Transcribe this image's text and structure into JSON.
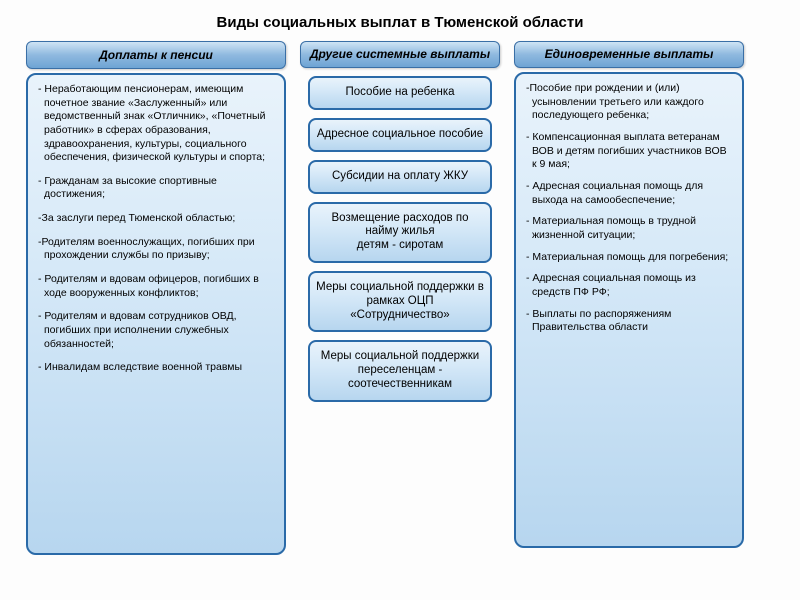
{
  "page": {
    "title": "Виды социальных выплат в Тюменской области",
    "background_color": "#fdfdfd",
    "title_fontsize": 15
  },
  "styling": {
    "header_gradient": [
      "#cfe4f5",
      "#8fb9df",
      "#6ea4d4"
    ],
    "panel_gradient": [
      "#e9f3fb",
      "#d6e9f8",
      "#b7d6ef"
    ],
    "border_color": "#2a6aa8",
    "font_family": "Arial",
    "body_fontsize": 10.5,
    "midbox_fontsize": 11.5,
    "header_fontsize": 12
  },
  "columns": {
    "pension": {
      "header": "Доплаты к пенсии",
      "items": [
        "- Неработающим пенсионерам, имеющим почетное звание «Заслуженный» или ведомственный знак «Отличник», «Почетный работник» в сферах образования, здравоохранения, культуры, социального обеспечения, физической культуры и спорта;",
        "- Гражданам за высокие спортивные достижения;",
        "-За заслуги перед Тюменской областью;",
        "-Родителям военнослужащих, погибших при прохождении службы по призыву;",
        "- Родителям и вдовам офицеров, погибших в ходе вооруженных конфликтов;",
        "- Родителям и вдовам сотрудников ОВД, погибших при исполнении служебных обязанностей;",
        "- Инвалидам вследствие военной травмы"
      ]
    },
    "other": {
      "header": "Другие системные выплаты",
      "boxes": [
        "Пособие  на ребенка",
        "Адресное социальное пособие",
        "Субсидии на оплату ЖКУ",
        "Возмещение расходов по найму жилья\nдетям - сиротам",
        "Меры социальной поддержки в рамках ОЦП «Сотрудничество»",
        "Меры социальной поддержки переселенцам - соотечественникам"
      ]
    },
    "onetime": {
      "header": "Единовременные выплаты",
      "items": [
        "-Пособие при рождении и (или) усыновлении третьего или каждого последующего ребенка;",
        "- Компенсационная выплата ветеранам ВОВ и детям погибших участников ВОВ к 9 мая;",
        "- Адресная социальная помощь для выхода на самообеспечение;",
        "- Материальная помощь в трудной жизненной ситуации;",
        "- Материальная помощь для погребения;",
        "- Адресная социальная помощь из средств ПФ РФ;",
        "- Выплаты по распоряжениям Правительства области"
      ]
    }
  }
}
